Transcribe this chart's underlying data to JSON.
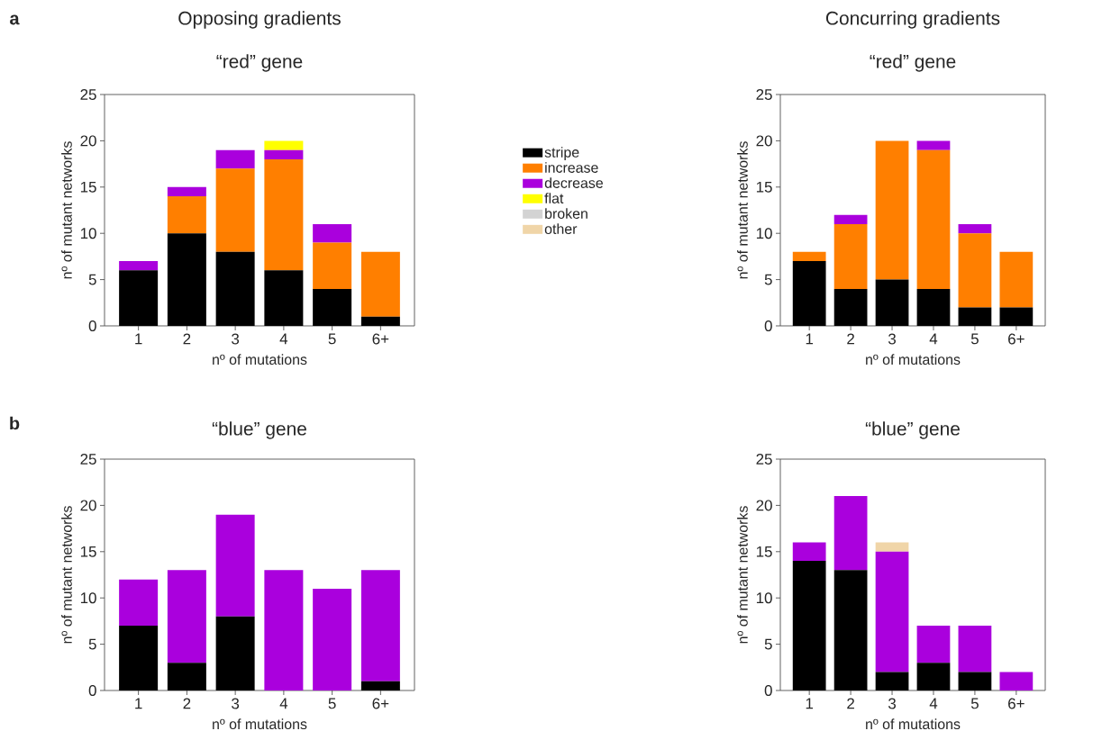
{
  "chart_data": [
    {
      "type": "bar",
      "stacked": true,
      "title": "Opposing gradients",
      "subtitle": "“red” gene",
      "xlabel": "nº of mutations",
      "ylabel": "nº of mutant networks",
      "annotations": [
        "a"
      ],
      "categories": [
        "1",
        "2",
        "3",
        "4",
        "5",
        "6+"
      ],
      "ylim": [
        0,
        25
      ],
      "yticks": [
        0,
        5,
        10,
        15,
        20,
        25
      ],
      "legend": "right",
      "series": [
        {
          "name": "stripe",
          "color": "#000000",
          "values": [
            6,
            10,
            8,
            6,
            4,
            1
          ]
        },
        {
          "name": "increase",
          "color": "#ff7f00",
          "values": [
            0,
            4,
            9,
            12,
            5,
            7
          ]
        },
        {
          "name": "decrease",
          "color": "#aa00dd",
          "values": [
            1,
            1,
            2,
            1,
            2,
            0
          ]
        },
        {
          "name": "flat",
          "color": "#ffff00",
          "values": [
            0,
            0,
            0,
            1,
            0,
            0
          ]
        },
        {
          "name": "broken",
          "color": "#d3d3d3",
          "values": [
            0,
            0,
            0,
            0,
            0,
            0
          ]
        },
        {
          "name": "other",
          "color": "#f0d5a8",
          "values": [
            0,
            0,
            0,
            0,
            0,
            0
          ]
        }
      ]
    },
    {
      "type": "bar",
      "stacked": true,
      "title": "Concurring gradients",
      "subtitle": "“red” gene",
      "xlabel": "nº of mutations",
      "ylabel": "nº of mutant networks",
      "categories": [
        "1",
        "2",
        "3",
        "4",
        "5",
        "6+"
      ],
      "ylim": [
        0,
        25
      ],
      "yticks": [
        0,
        5,
        10,
        15,
        20,
        25
      ],
      "series": [
        {
          "color": "#000000",
          "values": [
            7,
            4,
            5,
            4,
            2,
            2
          ]
        },
        {
          "color": "#ff7f00",
          "values": [
            1,
            7,
            15,
            15,
            8,
            6
          ]
        },
        {
          "color": "#aa00dd",
          "values": [
            0,
            1,
            0,
            1,
            1,
            0
          ]
        }
      ]
    },
    {
      "type": "bar",
      "stacked": true,
      "title": "“blue” gene",
      "xlabel": "nº of mutations",
      "ylabel": "nº of mutant networks",
      "annotations": [
        "b"
      ],
      "categories": [
        "1",
        "2",
        "3",
        "4",
        "5",
        "6+"
      ],
      "ylim": [
        0,
        25
      ],
      "yticks": [
        0,
        5,
        10,
        15,
        20,
        25
      ],
      "series": [
        {
          "color": "#000000",
          "values": [
            7,
            3,
            8,
            0,
            0,
            1
          ]
        },
        {
          "color": "#aa00dd",
          "values": [
            5,
            10,
            11,
            13,
            11,
            12
          ]
        }
      ]
    },
    {
      "type": "bar",
      "stacked": true,
      "title": "“blue” gene",
      "xlabel": "nº of mutations",
      "ylabel": "nº of mutant networks",
      "categories": [
        "1",
        "2",
        "3",
        "4",
        "5",
        "6+"
      ],
      "ylim": [
        0,
        25
      ],
      "yticks": [
        0,
        5,
        10,
        15,
        20,
        25
      ],
      "series": [
        {
          "color": "#000000",
          "values": [
            14,
            13,
            2,
            3,
            2,
            0
          ]
        },
        {
          "color": "#aa00dd",
          "values": [
            2,
            8,
            13,
            4,
            5,
            2
          ]
        },
        {
          "color": "#f0d5a8",
          "values": [
            0,
            0,
            1,
            0,
            0,
            0
          ]
        }
      ]
    }
  ]
}
